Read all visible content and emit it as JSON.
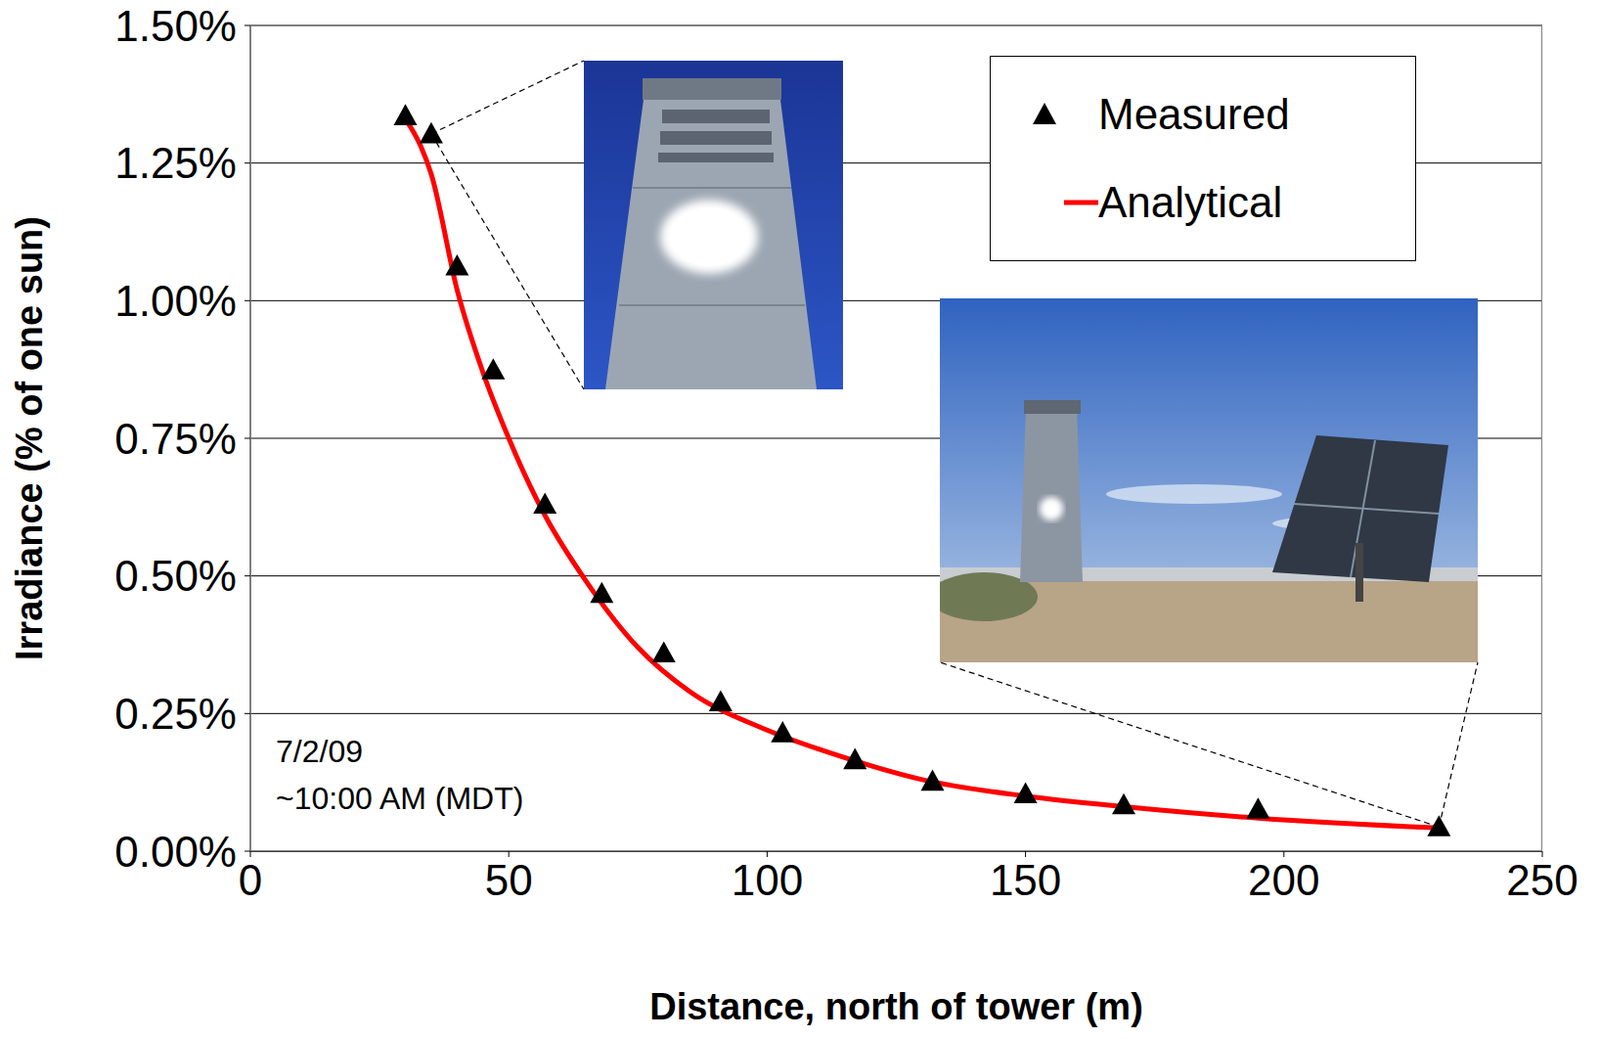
{
  "chart_data": {
    "type": "line",
    "x_label": "Distance, north of tower (m)",
    "y_label": "Irradiance (% of one sun)",
    "annotation": [
      "7/2/09",
      "~10:00 AM (MDT)"
    ],
    "series": [
      {
        "name": "Measured",
        "type": "scatter",
        "marker": "triangle",
        "color": "#000000",
        "x": [
          30,
          35,
          40,
          47,
          57,
          68,
          80,
          91,
          103,
          117,
          132,
          150,
          169,
          195,
          230
        ],
        "values": [
          1.336,
          1.303,
          1.063,
          0.874,
          0.63,
          0.468,
          0.36,
          0.271,
          0.215,
          0.166,
          0.127,
          0.104,
          0.084,
          0.076,
          0.044
        ]
      },
      {
        "name": "Analytical",
        "type": "line",
        "line_style": "solid",
        "color": "#ff0000",
        "x": [
          30,
          33,
          35,
          40,
          45,
          50,
          57,
          65,
          75,
          85,
          100,
          115,
          130,
          150,
          170,
          195,
          230
        ],
        "values": [
          1.33,
          1.28,
          1.23,
          1.02,
          0.87,
          0.75,
          0.61,
          0.49,
          0.37,
          0.29,
          0.22,
          0.17,
          0.13,
          0.1,
          0.08,
          0.06,
          0.042
        ]
      }
    ],
    "xlim": [
      0,
      250
    ],
    "xticks": [
      0,
      50,
      100,
      150,
      200,
      250
    ],
    "ylim": [
      0,
      1.5
    ],
    "yticks": [
      {
        "value": 0,
        "label": "0.00%"
      },
      {
        "value": 0.25,
        "label": "0.25%"
      },
      {
        "value": 0.5,
        "label": "0.50%"
      },
      {
        "value": 0.75,
        "label": "0.75%"
      },
      {
        "value": 1,
        "label": "1.00%"
      },
      {
        "value": 1.25,
        "label": "1.25%"
      },
      {
        "value": 1.5,
        "label": "1.50%"
      }
    ],
    "grid": true,
    "legend": "upper right"
  }
}
